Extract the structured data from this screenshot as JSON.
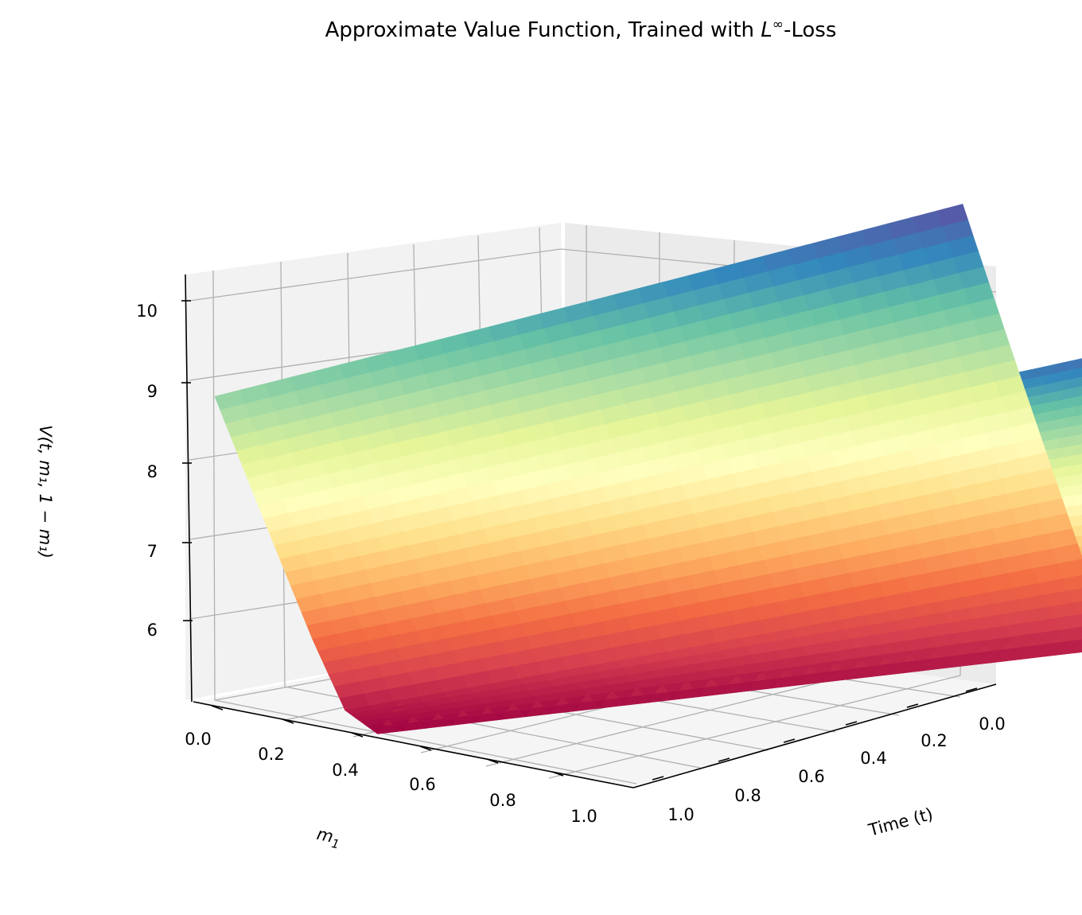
{
  "chart_data": {
    "type": "surface",
    "title_prefix": "Approximate Value Function, Trained with ",
    "title_sym": "L",
    "title_sup": "∞",
    "title_suffix": "-Loss",
    "xlabel_base": "m",
    "xlabel_sub": "1",
    "ylabel": "Time (t)",
    "zlabel": "V(t, m₁, 1 − m₁)",
    "x_ticks": [
      "0.0",
      "0.2",
      "0.4",
      "0.6",
      "0.8",
      "1.0"
    ],
    "y_ticks": [
      "0.0",
      "0.2",
      "0.4",
      "0.6",
      "0.8",
      "1.0"
    ],
    "z_ticks": [
      "6",
      "7",
      "8",
      "9",
      "10"
    ],
    "x_range": [
      0,
      1
    ],
    "y_range": [
      0,
      1
    ],
    "z_range": [
      5.1,
      10.4
    ],
    "colormap": "Spectral",
    "grid": true,
    "surface_samples": {
      "m1": [
        0.0,
        0.1,
        0.2,
        0.3,
        0.4,
        0.5,
        0.6,
        0.7,
        0.8,
        0.9,
        1.0
      ],
      "V_at_t0": [
        10.1,
        9.1,
        8.1,
        7.1,
        6.1,
        5.3,
        6.1,
        7.1,
        8.1,
        9.1,
        10.1
      ],
      "V_at_t1": [
        8.8,
        7.9,
        7.0,
        6.1,
        5.3,
        5.1,
        5.8,
        6.7,
        7.5,
        8.3,
        9.1
      ]
    }
  }
}
